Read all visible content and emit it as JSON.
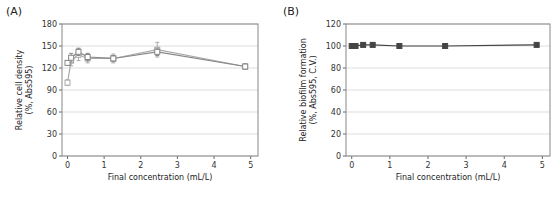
{
  "chart_data": [
    {
      "type": "line",
      "title": "(A)",
      "x_label": "Final concentration (mL/L)",
      "y_label": "Relative cell density\n(%, Abs595)",
      "x": [
        0.0,
        0.1,
        0.3,
        0.55,
        1.25,
        2.45,
        4.85
      ],
      "xlim": [
        -0.15,
        5.2
      ],
      "xticks": [
        0,
        1,
        2,
        3,
        4,
        5
      ],
      "ylim": [
        0,
        180
      ],
      "yticks": [
        0,
        30,
        60,
        90,
        120,
        150,
        180
      ],
      "grid": true,
      "series": [
        {
          "color": "#aaaaaa",
          "marker": "square-open",
          "values": [
            100,
            130,
            138,
            133,
            133,
            145,
            122
          ],
          "errors": [
            4,
            7,
            8,
            6,
            6,
            10,
            4
          ]
        },
        {
          "color": "#888888",
          "marker": "square-open",
          "values": [
            127,
            134,
            142,
            135,
            133,
            142,
            122
          ],
          "errors": [
            3,
            6,
            5,
            5,
            4,
            5,
            3
          ]
        }
      ]
    },
    {
      "type": "line",
      "title": "(B)",
      "x_label": "Final concentration (mL/L)",
      "y_label": "Relative biofilm formation\n(%, Abs595, C.V.)",
      "x": [
        0.0,
        0.1,
        0.3,
        0.55,
        1.25,
        2.45,
        4.85
      ],
      "xlim": [
        -0.15,
        5.2
      ],
      "xticks": [
        0,
        1,
        2,
        3,
        4,
        5
      ],
      "ylim": [
        0,
        120
      ],
      "yticks": [
        0,
        20,
        40,
        60,
        80,
        100,
        120
      ],
      "grid": true,
      "series": [
        {
          "color": "#444444",
          "marker": "square",
          "values": [
            100,
            100,
            101,
            101,
            100,
            100,
            101
          ],
          "errors": [
            0.5,
            0.5,
            0.5,
            0.5,
            0.5,
            0.5,
            0.5
          ]
        }
      ]
    }
  ]
}
